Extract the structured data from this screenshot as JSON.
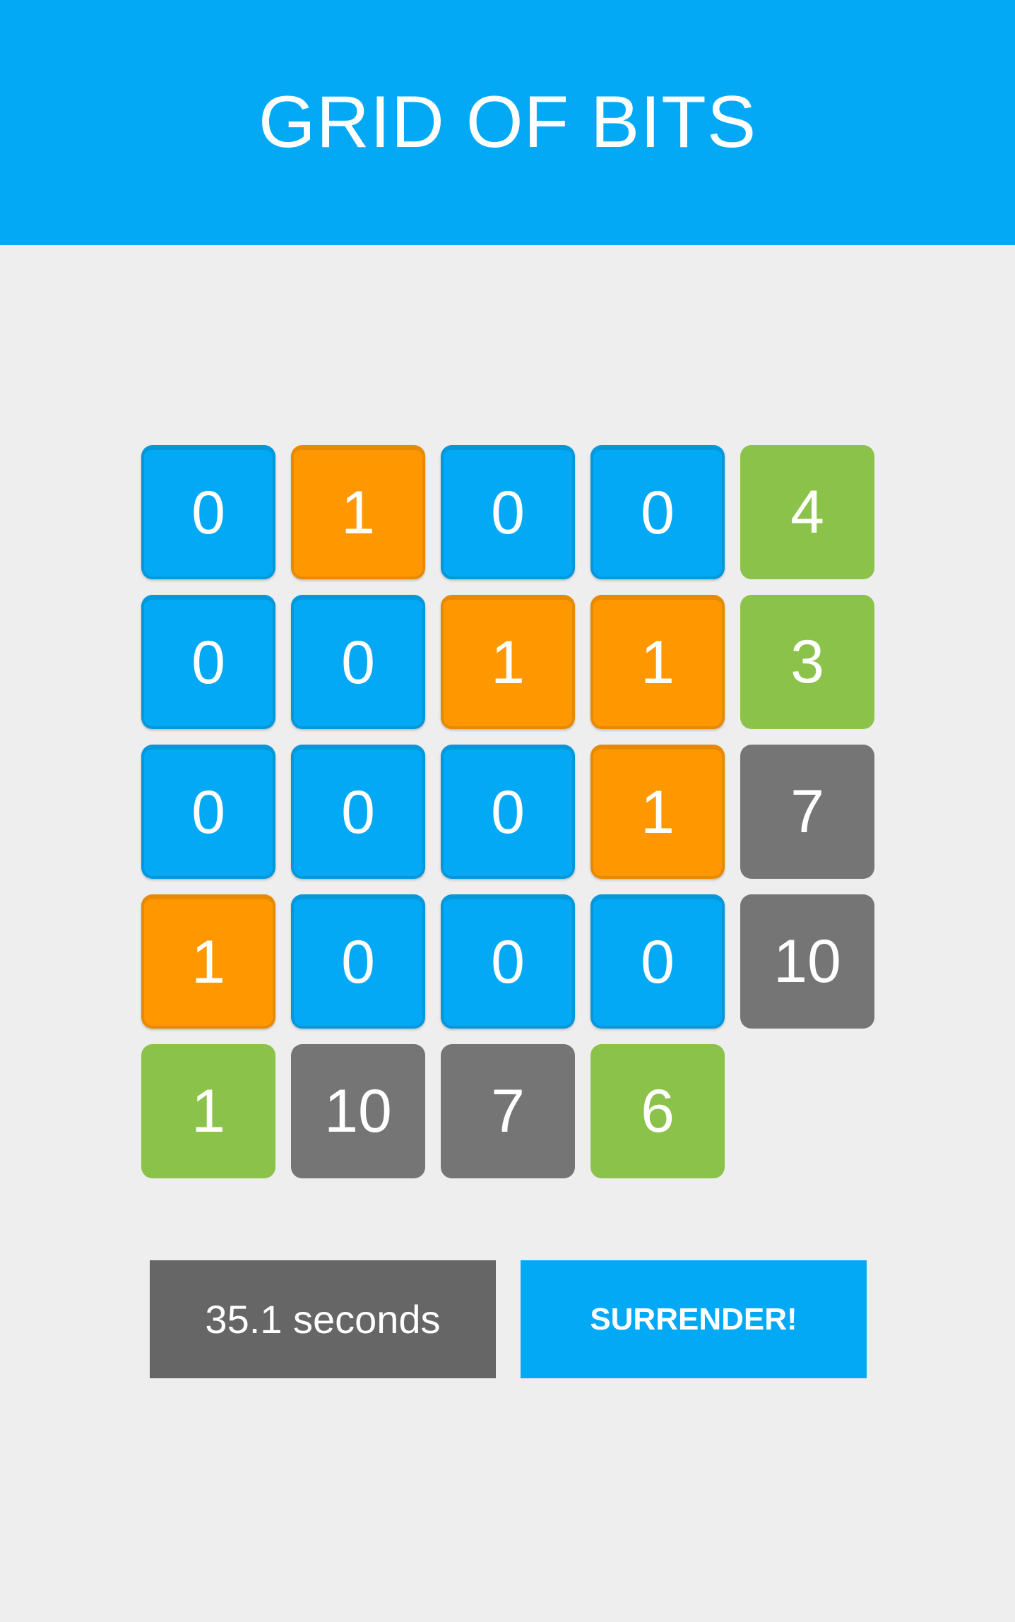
{
  "header": {
    "title": "GRID OF BITS"
  },
  "grid": {
    "rows": [
      {
        "bits": [
          "0",
          "1",
          "0",
          "0"
        ],
        "count": "4",
        "count_status": "correct"
      },
      {
        "bits": [
          "0",
          "0",
          "1",
          "1"
        ],
        "count": "3",
        "count_status": "correct"
      },
      {
        "bits": [
          "0",
          "0",
          "0",
          "1"
        ],
        "count": "7",
        "count_status": "incorrect"
      },
      {
        "bits": [
          "1",
          "0",
          "0",
          "0"
        ],
        "count": "10",
        "count_status": "incorrect"
      }
    ],
    "column_counts": [
      {
        "value": "1",
        "status": "correct"
      },
      {
        "value": "10",
        "status": "incorrect"
      },
      {
        "value": "7",
        "status": "incorrect"
      },
      {
        "value": "6",
        "status": "correct"
      }
    ]
  },
  "footer": {
    "timer": "35.1 seconds",
    "surrender_label": "SURRENDER!"
  },
  "colors": {
    "header": "#03a9f4",
    "bit_off": "#03a9f4",
    "bit_on": "#ff9800",
    "count_correct": "#8bc34a",
    "count_incorrect": "#757575",
    "timer_bg": "#666666",
    "background": "#eeeeee"
  }
}
